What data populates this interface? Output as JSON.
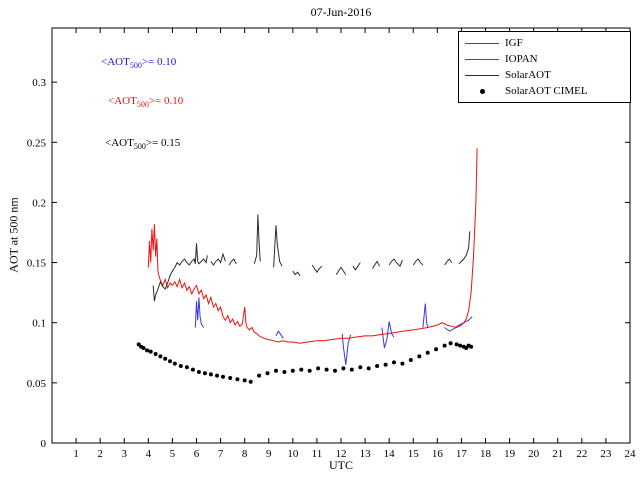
{
  "annotations": [
    {
      "prefix": "<AOT",
      "sub": "500",
      "suffix": ">= 0.10",
      "color": "#1515dd"
    },
    {
      "prefix": "<AOT",
      "sub": "500",
      "suffix": ">= 0.10",
      "color": "#ee1111"
    },
    {
      "prefix": "<AOT",
      "sub": "500",
      "suffix": ">= 0.15",
      "color": "#000000"
    }
  ],
  "chart_data": {
    "type": "line",
    "title": "07-Jun-2016",
    "xlabel": "UTC",
    "ylabel": "AOT at 500 nm",
    "xlim": [
      0,
      24
    ],
    "ylim": [
      0,
      0.345
    ],
    "grid": false,
    "legend_position": "top-right",
    "xticks": [
      1,
      2,
      3,
      4,
      5,
      6,
      7,
      8,
      9,
      10,
      11,
      12,
      13,
      14,
      15,
      16,
      17,
      18,
      19,
      20,
      21,
      22,
      23,
      24
    ],
    "yticks": [
      0,
      0.05,
      0.1,
      0.15,
      0.2,
      0.25,
      0.3
    ],
    "ytick_labels": [
      "0",
      "0.05",
      "0.1",
      "0.15",
      "0.2",
      "0.25",
      "0.3"
    ],
    "series": [
      {
        "name": "IGF",
        "type": "line",
        "color": "#3a3ad8",
        "segments": [
          [
            [
              5.95,
              0.096
            ],
            [
              6.0,
              0.118
            ],
            [
              6.05,
              0.102
            ],
            [
              6.1,
              0.121
            ],
            [
              6.15,
              0.105
            ],
            [
              6.2,
              0.099
            ],
            [
              6.3,
              0.096
            ]
          ],
          [
            [
              9.3,
              0.089
            ],
            [
              9.4,
              0.093
            ],
            [
              9.5,
              0.09
            ],
            [
              9.6,
              0.087
            ]
          ],
          [
            [
              12.05,
              0.091
            ],
            [
              12.1,
              0.08
            ],
            [
              12.2,
              0.065
            ],
            [
              12.3,
              0.083
            ],
            [
              12.4,
              0.09
            ]
          ],
          [
            [
              13.7,
              0.096
            ],
            [
              13.8,
              0.079
            ],
            [
              13.9,
              0.086
            ],
            [
              14.0,
              0.101
            ],
            [
              14.1,
              0.091
            ],
            [
              14.2,
              0.088
            ]
          ],
          [
            [
              15.4,
              0.096
            ],
            [
              15.5,
              0.116
            ],
            [
              15.55,
              0.101
            ],
            [
              15.6,
              0.096
            ]
          ],
          [
            [
              16.3,
              0.096
            ],
            [
              16.5,
              0.093
            ],
            [
              16.7,
              0.095
            ],
            [
              16.9,
              0.098
            ],
            [
              17.1,
              0.1
            ],
            [
              17.3,
              0.102
            ],
            [
              17.45,
              0.105
            ]
          ]
        ]
      },
      {
        "name": "IOPAN",
        "type": "line",
        "color": "#ee1111",
        "segments": [
          [
            [
              4.0,
              0.146
            ],
            [
              4.05,
              0.168
            ],
            [
              4.1,
              0.15
            ],
            [
              4.15,
              0.178
            ],
            [
              4.2,
              0.16
            ],
            [
              4.25,
              0.182
            ],
            [
              4.3,
              0.155
            ],
            [
              4.35,
              0.17
            ],
            [
              4.4,
              0.142
            ],
            [
              4.5,
              0.135
            ],
            [
              4.6,
              0.131
            ],
            [
              4.7,
              0.136
            ],
            [
              4.8,
              0.129
            ],
            [
              4.9,
              0.133
            ],
            [
              5.0,
              0.131
            ],
            [
              5.1,
              0.134
            ],
            [
              5.2,
              0.13
            ],
            [
              5.3,
              0.136
            ],
            [
              5.4,
              0.129
            ],
            [
              5.5,
              0.133
            ],
            [
              5.6,
              0.127
            ],
            [
              5.7,
              0.13
            ],
            [
              5.8,
              0.124
            ],
            [
              5.9,
              0.128
            ],
            [
              6.0,
              0.131
            ],
            [
              6.1,
              0.124
            ],
            [
              6.2,
              0.127
            ],
            [
              6.3,
              0.12
            ],
            [
              6.4,
              0.123
            ],
            [
              6.5,
              0.116
            ],
            [
              6.6,
              0.121
            ],
            [
              6.7,
              0.113
            ],
            [
              6.8,
              0.116
            ],
            [
              6.9,
              0.11
            ],
            [
              7.0,
              0.113
            ],
            [
              7.1,
              0.105
            ],
            [
              7.2,
              0.102
            ],
            [
              7.3,
              0.106
            ],
            [
              7.4,
              0.1
            ],
            [
              7.5,
              0.103
            ],
            [
              7.6,
              0.098
            ],
            [
              7.7,
              0.101
            ],
            [
              7.8,
              0.097
            ],
            [
              7.9,
              0.099
            ],
            [
              8.0,
              0.113
            ],
            [
              8.05,
              0.1
            ],
            [
              8.1,
              0.096
            ],
            [
              8.2,
              0.094
            ],
            [
              8.3,
              0.096
            ],
            [
              8.4,
              0.092
            ],
            [
              8.5,
              0.091
            ],
            [
              8.6,
              0.089
            ],
            [
              8.8,
              0.087
            ],
            [
              9.0,
              0.086
            ],
            [
              9.2,
              0.085
            ],
            [
              9.4,
              0.084
            ],
            [
              9.6,
              0.085
            ],
            [
              9.8,
              0.084
            ],
            [
              10.0,
              0.084
            ],
            [
              10.3,
              0.083
            ],
            [
              10.6,
              0.084
            ],
            [
              11.0,
              0.085
            ],
            [
              11.3,
              0.085
            ],
            [
              11.6,
              0.086
            ],
            [
              12.0,
              0.087
            ],
            [
              12.3,
              0.087
            ],
            [
              12.6,
              0.088
            ],
            [
              13.0,
              0.089
            ],
            [
              13.3,
              0.089
            ],
            [
              13.6,
              0.09
            ],
            [
              14.0,
              0.091
            ],
            [
              14.3,
              0.092
            ],
            [
              14.6,
              0.093
            ],
            [
              15.0,
              0.094
            ],
            [
              15.3,
              0.095
            ],
            [
              15.6,
              0.096
            ],
            [
              16.0,
              0.098
            ],
            [
              16.2,
              0.1
            ],
            [
              16.4,
              0.098
            ],
            [
              16.6,
              0.097
            ],
            [
              16.8,
              0.096
            ],
            [
              17.0,
              0.098
            ],
            [
              17.1,
              0.1
            ],
            [
              17.2,
              0.103
            ],
            [
              17.3,
              0.11
            ],
            [
              17.4,
              0.125
            ],
            [
              17.5,
              0.155
            ],
            [
              17.6,
              0.2
            ],
            [
              17.65,
              0.245
            ]
          ]
        ]
      },
      {
        "name": "SolarAOT",
        "type": "line",
        "color": "#2b2b2b",
        "segments": [
          [
            [
              4.2,
              0.131
            ],
            [
              4.25,
              0.118
            ],
            [
              4.3,
              0.123
            ],
            [
              4.4,
              0.128
            ],
            [
              4.5,
              0.134
            ],
            [
              4.6,
              0.13
            ],
            [
              4.7,
              0.128
            ],
            [
              4.8,
              0.133
            ],
            [
              4.9,
              0.139
            ],
            [
              5.0,
              0.143
            ],
            [
              5.1,
              0.146
            ],
            [
              5.2,
              0.15
            ],
            [
              5.3,
              0.148
            ],
            [
              5.4,
              0.151
            ],
            [
              5.5,
              0.153
            ],
            [
              5.6,
              0.15
            ],
            [
              5.7,
              0.148
            ],
            [
              5.8,
              0.151
            ],
            [
              5.9,
              0.153
            ],
            [
              5.95,
              0.149
            ],
            [
              6.0,
              0.166
            ],
            [
              6.05,
              0.151
            ],
            [
              6.1,
              0.149
            ],
            [
              6.2,
              0.151
            ],
            [
              6.3,
              0.153
            ],
            [
              6.4,
              0.15
            ],
            [
              6.45,
              0.156
            ]
          ],
          [
            [
              6.6,
              0.151
            ],
            [
              6.7,
              0.148
            ],
            [
              6.8,
              0.151
            ],
            [
              6.9,
              0.153
            ],
            [
              7.0,
              0.15
            ],
            [
              7.1,
              0.157
            ],
            [
              7.2,
              0.151
            ]
          ],
          [
            [
              7.35,
              0.148
            ],
            [
              7.45,
              0.151
            ],
            [
              7.55,
              0.153
            ],
            [
              7.65,
              0.149
            ]
          ],
          [
            [
              8.4,
              0.149
            ],
            [
              8.5,
              0.156
            ],
            [
              8.55,
              0.19
            ],
            [
              8.6,
              0.166
            ],
            [
              8.65,
              0.151
            ]
          ],
          [
            [
              9.2,
              0.146
            ],
            [
              9.3,
              0.181
            ],
            [
              9.35,
              0.166
            ],
            [
              9.45,
              0.151
            ],
            [
              9.55,
              0.147
            ]
          ],
          [
            [
              10.0,
              0.143
            ],
            [
              10.1,
              0.14
            ],
            [
              10.2,
              0.142
            ],
            [
              10.3,
              0.139
            ]
          ],
          [
            [
              10.8,
              0.148
            ],
            [
              10.9,
              0.145
            ],
            [
              11.0,
              0.142
            ],
            [
              11.1,
              0.145
            ],
            [
              11.2,
              0.147
            ]
          ],
          [
            [
              11.8,
              0.14
            ],
            [
              11.9,
              0.143
            ],
            [
              12.0,
              0.146
            ],
            [
              12.1,
              0.143
            ],
            [
              12.2,
              0.14
            ]
          ],
          [
            [
              12.5,
              0.147
            ],
            [
              12.6,
              0.144
            ],
            [
              12.7,
              0.147
            ],
            [
              12.8,
              0.15
            ]
          ],
          [
            [
              13.3,
              0.145
            ],
            [
              13.4,
              0.148
            ],
            [
              13.5,
              0.151
            ],
            [
              13.6,
              0.147
            ]
          ],
          [
            [
              14.0,
              0.148
            ],
            [
              14.1,
              0.151
            ],
            [
              14.2,
              0.153
            ],
            [
              14.3,
              0.15
            ],
            [
              14.45,
              0.147
            ],
            [
              14.55,
              0.152
            ]
          ],
          [
            [
              15.0,
              0.148
            ],
            [
              15.1,
              0.151
            ],
            [
              15.2,
              0.153
            ],
            [
              15.3,
              0.15
            ],
            [
              15.4,
              0.148
            ]
          ],
          [
            [
              16.3,
              0.148
            ],
            [
              16.4,
              0.151
            ],
            [
              16.5,
              0.153
            ],
            [
              16.6,
              0.15
            ]
          ],
          [
            [
              16.9,
              0.149
            ],
            [
              17.0,
              0.151
            ],
            [
              17.1,
              0.153
            ],
            [
              17.2,
              0.156
            ],
            [
              17.3,
              0.162
            ],
            [
              17.35,
              0.176
            ]
          ]
        ]
      },
      {
        "name": "SolarAOT CIMEL",
        "type": "scatter",
        "color": "#000000",
        "points": [
          [
            3.6,
            0.082
          ],
          [
            3.7,
            0.08
          ],
          [
            3.8,
            0.079
          ],
          [
            3.95,
            0.077
          ],
          [
            4.1,
            0.076
          ],
          [
            4.3,
            0.074
          ],
          [
            4.5,
            0.072
          ],
          [
            4.7,
            0.07
          ],
          [
            4.9,
            0.068
          ],
          [
            5.1,
            0.066
          ],
          [
            5.35,
            0.064
          ],
          [
            5.6,
            0.063
          ],
          [
            5.85,
            0.061
          ],
          [
            6.1,
            0.059
          ],
          [
            6.35,
            0.058
          ],
          [
            6.6,
            0.057
          ],
          [
            6.85,
            0.056
          ],
          [
            7.1,
            0.055
          ],
          [
            7.4,
            0.054
          ],
          [
            7.7,
            0.053
          ],
          [
            8.0,
            0.052
          ],
          [
            8.25,
            0.051
          ],
          [
            8.6,
            0.056
          ],
          [
            8.95,
            0.058
          ],
          [
            9.3,
            0.06
          ],
          [
            9.65,
            0.059
          ],
          [
            10.0,
            0.06
          ],
          [
            10.35,
            0.061
          ],
          [
            10.7,
            0.06
          ],
          [
            11.05,
            0.062
          ],
          [
            11.4,
            0.061
          ],
          [
            11.75,
            0.06
          ],
          [
            12.1,
            0.062
          ],
          [
            12.45,
            0.061
          ],
          [
            12.8,
            0.063
          ],
          [
            13.15,
            0.062
          ],
          [
            13.5,
            0.064
          ],
          [
            13.85,
            0.065
          ],
          [
            14.2,
            0.067
          ],
          [
            14.55,
            0.066
          ],
          [
            14.9,
            0.069
          ],
          [
            15.25,
            0.072
          ],
          [
            15.6,
            0.075
          ],
          [
            15.95,
            0.078
          ],
          [
            16.3,
            0.081
          ],
          [
            16.55,
            0.083
          ],
          [
            16.8,
            0.082
          ],
          [
            16.95,
            0.081
          ],
          [
            17.1,
            0.08
          ],
          [
            17.2,
            0.079
          ],
          [
            17.3,
            0.081
          ],
          [
            17.4,
            0.08
          ]
        ]
      }
    ]
  }
}
